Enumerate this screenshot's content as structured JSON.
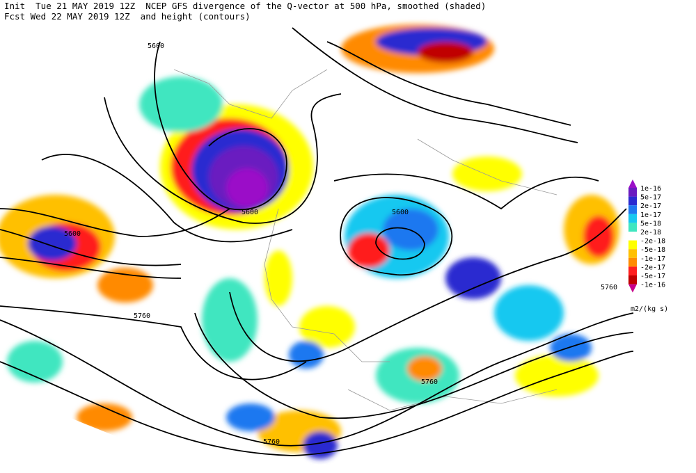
{
  "header": {
    "line1": "Init  Tue 21 MAY 2019 12Z  NCEP GFS divergence of the Q-vector at 500 hPa, smoothed (shaded)",
    "line2": "Fcst Wed 22 MAY 2019 12Z  and height (contours)"
  },
  "contour_labels": [
    "5600",
    "5600",
    "5600",
    "5600",
    "5760",
    "5760",
    "5760",
    "5760"
  ],
  "colorbar": {
    "labels": [
      "1e-16",
      "5e-17",
      "2e-17",
      "1e-17",
      "5e-18",
      "2e-18",
      "-2e-18",
      "-5e-18",
      "-1e-17",
      "-2e-17",
      "-5e-17",
      "-1e-16"
    ],
    "colors": [
      "#9b0fc8",
      "#6a1bc0",
      "#2a2ad0",
      "#1e78f0",
      "#18c8f0",
      "#40e6c0",
      "#ffffff",
      "#ffff00",
      "#ffc000",
      "#ff8a00",
      "#ff1e1e",
      "#c00000",
      "#c8008c"
    ],
    "unit": "m2/(kg s)"
  }
}
